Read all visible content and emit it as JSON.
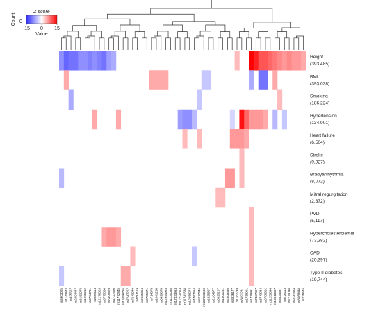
{
  "chart_data": {
    "type": "heatmap",
    "legend": {
      "title": "Z score",
      "count_label": "Count",
      "value_label": "Value",
      "ticks": [
        -15,
        0,
        15
      ],
      "colors": {
        "low": "#2d2dff",
        "mid": "#ffffff",
        "high": "#ff0000"
      }
    },
    "rows": [
      {
        "name": "Height",
        "count": "(393,485)"
      },
      {
        "name": "BMI",
        "count": "(393,038)"
      },
      {
        "name": "Smoking",
        "count": "(186,224)"
      },
      {
        "name": "Hypertension",
        "count": "(134,901)"
      },
      {
        "name": "Heart failure",
        "count": "(6,504)"
      },
      {
        "name": "Stroke",
        "count": "(9,927)"
      },
      {
        "name": "Bradyarrhythmia",
        "count": "(8,072)"
      },
      {
        "name": "Mitral regurgitation",
        "count": "(2,372)"
      },
      {
        "name": "PVD",
        "count": "(5,117)"
      },
      {
        "name": "Hypercholesterolemia",
        "count": "(73,382)"
      },
      {
        "name": "CAD",
        "count": "(20,397)"
      },
      {
        "name": "Type II diabetes",
        "count": "(19,744)"
      }
    ],
    "columns": [
      "rs6903025",
      "rs1143674",
      "rs925557",
      "rs2494447",
      "rs8182078",
      "rs1996212",
      "rs3794731",
      "rs2855114",
      "rs12176326",
      "rs3775060",
      "rs6498419",
      "rs1727650",
      "rs11772845",
      "rs16856795",
      "rs7247267",
      "rs7243949",
      "rs4761119",
      "rs9925394",
      "rs3785871",
      "rs714678",
      "rs1041288",
      "rs6499578",
      "rs12944953",
      "rs11130038",
      "rs17433963",
      "rs12720314",
      "rs11741588",
      "rs10888274",
      "rs4767864",
      "rs2277846",
      "rs187880530",
      "rs1328987",
      "rs2104977",
      "rs6825157",
      "rs1800231",
      "rs2808436",
      "rs3826177",
      "rs1182249",
      "rs8691281",
      "rs1738991",
      "rs1779981",
      "rs7437397",
      "rs3743034",
      "rs6786662",
      "rs11259844",
      "rs10813387",
      "rs8824637",
      "rs8726113",
      "rs7219048",
      "rs9141484",
      "rs3668448",
      "rs228546"
    ],
    "cells": [
      {
        "row": 0,
        "cols": [
          0,
          1,
          2,
          3,
          4,
          5,
          6,
          7,
          8,
          9,
          10,
          11
        ],
        "values": [
          -8,
          -11,
          -10,
          -10,
          -8,
          -8,
          -9,
          -8,
          -9,
          -10,
          -7,
          -6
        ]
      },
      {
        "row": 0,
        "cols": [
          37
        ],
        "values": [
          4
        ]
      },
      {
        "row": 0,
        "cols": [
          40,
          41,
          42,
          43,
          44,
          45,
          46,
          47,
          48,
          49,
          50,
          51
        ],
        "values": [
          15,
          13,
          10,
          10,
          9,
          8,
          7,
          6,
          7,
          6,
          6,
          5
        ]
      },
      {
        "row": 1,
        "cols": [
          1
        ],
        "values": [
          5
        ]
      },
      {
        "row": 1,
        "cols": [
          19,
          20,
          21,
          22
        ],
        "values": [
          5,
          5,
          5,
          5
        ]
      },
      {
        "row": 1,
        "cols": [
          30,
          31
        ],
        "values": [
          -4,
          -4
        ]
      },
      {
        "row": 1,
        "cols": [
          40
        ],
        "values": [
          -6
        ]
      },
      {
        "row": 1,
        "cols": [
          42,
          43
        ],
        "values": [
          -10,
          -10
        ]
      },
      {
        "row": 1,
        "cols": [
          45
        ],
        "values": [
          5
        ]
      },
      {
        "row": 2,
        "cols": [
          2
        ],
        "values": [
          -6
        ]
      },
      {
        "row": 2,
        "cols": [
          29
        ],
        "values": [
          -4
        ]
      },
      {
        "row": 2,
        "cols": [
          46
        ],
        "values": [
          4
        ]
      },
      {
        "row": 3,
        "cols": [
          7
        ],
        "values": [
          5
        ]
      },
      {
        "row": 3,
        "cols": [
          12
        ],
        "values": [
          5
        ]
      },
      {
        "row": 3,
        "cols": [
          25,
          26,
          27,
          28
        ],
        "values": [
          -7,
          -8,
          -8,
          -5
        ]
      },
      {
        "row": 3,
        "cols": [
          36
        ],
        "values": [
          -3
        ]
      },
      {
        "row": 3,
        "cols": [
          38,
          39,
          40,
          41,
          42,
          43
        ],
        "values": [
          14,
          9,
          6,
          6,
          6,
          5
        ]
      },
      {
        "row": 3,
        "cols": [
          45
        ],
        "values": [
          -5
        ]
      },
      {
        "row": 3,
        "cols": [
          47
        ],
        "values": [
          -4
        ]
      },
      {
        "row": 4,
        "cols": [
          26
        ],
        "values": [
          4
        ]
      },
      {
        "row": 4,
        "cols": [
          29
        ],
        "values": [
          4
        ]
      },
      {
        "row": 4,
        "cols": [
          36,
          37,
          38
        ],
        "values": [
          6,
          6,
          6
        ]
      },
      {
        "row": 4,
        "cols": [
          39
        ],
        "values": [
          5
        ]
      },
      {
        "row": 5,
        "cols": [
          38
        ],
        "values": [
          4
        ]
      },
      {
        "row": 6,
        "cols": [
          0
        ],
        "values": [
          -5
        ]
      },
      {
        "row": 6,
        "cols": [
          35,
          36
        ],
        "values": [
          6,
          6
        ]
      },
      {
        "row": 6,
        "cols": [
          38
        ],
        "values": [
          4
        ]
      },
      {
        "row": 7,
        "cols": [
          33,
          34
        ],
        "values": [
          4,
          4
        ]
      },
      {
        "row": 8,
        "cols": [
          40
        ],
        "values": [
          4
        ]
      },
      {
        "row": 9,
        "cols": [
          9,
          10,
          11,
          12
        ],
        "values": [
          5,
          6,
          6,
          5
        ]
      },
      {
        "row": 9,
        "cols": [
          40
        ],
        "values": [
          4
        ]
      },
      {
        "row": 10,
        "cols": [
          15
        ],
        "values": [
          4
        ]
      },
      {
        "row": 10,
        "cols": [
          28
        ],
        "values": [
          -4
        ]
      },
      {
        "row": 10,
        "cols": [
          40
        ],
        "values": [
          4
        ]
      },
      {
        "row": 11,
        "cols": [
          0
        ],
        "values": [
          -4
        ]
      },
      {
        "row": 11,
        "cols": [
          13,
          14
        ],
        "values": [
          5,
          5
        ]
      },
      {
        "row": 11,
        "cols": [
          40
        ],
        "values": [
          4
        ]
      }
    ]
  }
}
